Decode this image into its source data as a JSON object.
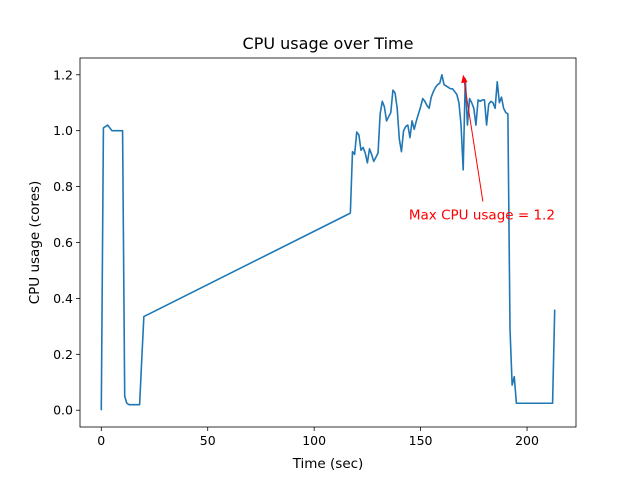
{
  "chart_data": {
    "type": "line",
    "title": "CPU usage over Time",
    "xlabel": "Time (sec)",
    "ylabel": "CPU usage (cores)",
    "xlim": [
      -10,
      223
    ],
    "ylim": [
      -0.06,
      1.26
    ],
    "xticks": [
      0,
      50,
      100,
      150,
      200
    ],
    "yticks": [
      0.0,
      0.2,
      0.4,
      0.6,
      0.8,
      1.0,
      1.2
    ],
    "xtick_labels": [
      "0",
      "50",
      "100",
      "150",
      "200"
    ],
    "ytick_labels": [
      "0.0",
      "0.2",
      "0.4",
      "0.6",
      "0.8",
      "1.0",
      "1.2"
    ],
    "grid": false,
    "legend": false,
    "series": [
      {
        "color": "#1f77b4",
        "x": [
          0,
          1,
          3,
          4,
          5,
          7,
          9,
          10,
          11,
          12,
          13,
          15,
          17,
          18,
          19,
          20,
          117,
          118,
          119,
          120,
          121,
          122,
          123,
          124,
          125,
          126,
          127,
          128,
          129,
          130,
          131,
          132,
          133,
          134,
          135,
          136,
          137,
          138,
          139,
          140,
          141,
          142,
          143,
          144,
          145,
          146,
          147,
          148,
          149,
          150,
          151,
          152,
          153,
          154,
          155,
          156,
          157,
          158,
          159,
          160,
          161,
          162,
          163,
          164,
          165,
          166,
          167,
          168,
          169,
          170,
          171,
          172,
          173,
          174,
          175,
          176,
          177,
          178,
          179,
          180,
          181,
          182,
          183,
          184,
          185,
          186,
          187,
          188,
          189,
          190,
          191,
          192,
          193,
          194,
          195,
          196,
          197,
          198,
          199,
          200,
          201,
          202,
          203,
          204,
          205,
          206,
          207,
          208,
          209,
          210,
          211,
          212,
          213
        ],
        "values": [
          0.0,
          1.01,
          1.02,
          1.01,
          1.0,
          1.0,
          1.0,
          1.0,
          0.05,
          0.025,
          0.02,
          0.02,
          0.02,
          0.02,
          0.18,
          0.335,
          0.705,
          0.925,
          0.915,
          0.995,
          0.985,
          0.93,
          0.94,
          0.92,
          0.885,
          0.935,
          0.915,
          0.89,
          0.905,
          0.92,
          1.06,
          1.105,
          1.085,
          1.035,
          1.05,
          1.065,
          1.145,
          1.135,
          1.08,
          0.97,
          0.925,
          1.0,
          1.015,
          1.02,
          0.975,
          1.035,
          1.005,
          1.035,
          1.06,
          1.085,
          1.115,
          1.105,
          1.09,
          1.08,
          1.12,
          1.14,
          1.155,
          1.165,
          1.17,
          1.2,
          1.165,
          1.16,
          1.155,
          1.15,
          1.15,
          1.14,
          1.13,
          1.1,
          1.02,
          0.86,
          1.185,
          1.02,
          1.115,
          1.1,
          1.08,
          1.02,
          1.11,
          1.105,
          1.11,
          1.11,
          1.02,
          1.095,
          1.105,
          1.1,
          1.08,
          1.175,
          1.1,
          1.12,
          1.08,
          1.065,
          1.06,
          0.29,
          0.09,
          0.12,
          0.025,
          0.025,
          0.025,
          0.025,
          0.025,
          0.025,
          0.025,
          0.025,
          0.025,
          0.025,
          0.025,
          0.025,
          0.025,
          0.025,
          0.025,
          0.025,
          0.025,
          0.025,
          0.36
        ]
      }
    ],
    "annotations": [
      {
        "text": "Max CPU usage = 1.2",
        "xy": [
          170,
          1.2
        ],
        "xytext": [
          144.5,
          0.7
        ],
        "color": "#ff0000"
      }
    ]
  }
}
